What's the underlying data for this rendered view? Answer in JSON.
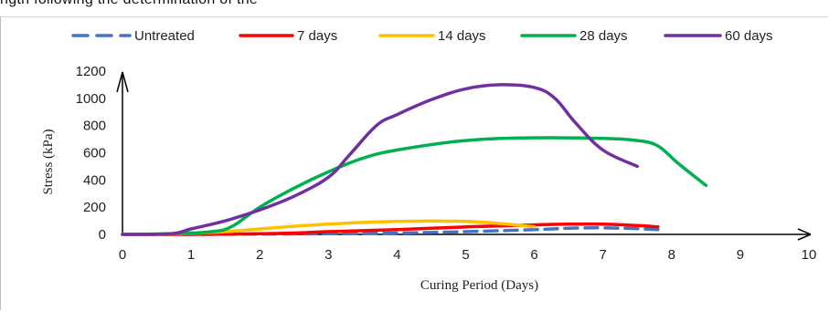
{
  "page": {
    "top_fragment": "ngth following the determination of the"
  },
  "chart_data": {
    "type": "line",
    "title": "",
    "xlabel": "Curing Period (Days)",
    "ylabel": "Stress (kPa)",
    "xlim": [
      0,
      10
    ],
    "ylim": [
      0,
      1200
    ],
    "x_ticks": [
      "0",
      "1",
      "2",
      "3",
      "4",
      "5",
      "6",
      "7",
      "8",
      "9",
      "10"
    ],
    "y_ticks": [
      "0",
      "200",
      "400",
      "600",
      "800",
      "1000",
      "1200"
    ],
    "grid": false,
    "legend_position": "top",
    "series": [
      {
        "name": "Untreated",
        "color": "#4472C4",
        "dashed": true,
        "x": [
          0,
          1,
          2,
          3,
          4,
          5,
          6,
          6.5,
          7,
          7.5,
          7.8
        ],
        "y": [
          0,
          0,
          2,
          5,
          10,
          20,
          35,
          45,
          48,
          42,
          35
        ]
      },
      {
        "name": "7 days",
        "color": "#FF0000",
        "dashed": false,
        "x": [
          0,
          1,
          1.5,
          2,
          2.5,
          3,
          4,
          5,
          6,
          6.5,
          7,
          7.5,
          7.8
        ],
        "y": [
          0,
          0,
          2,
          5,
          10,
          20,
          35,
          55,
          70,
          75,
          75,
          65,
          55
        ]
      },
      {
        "name": "14 days",
        "color": "#FFC000",
        "dashed": false,
        "x": [
          0,
          0.8,
          1.5,
          2,
          2.5,
          3,
          3.5,
          4,
          4.5,
          5,
          5.5,
          6
        ],
        "y": [
          0,
          5,
          20,
          40,
          60,
          75,
          88,
          95,
          98,
          95,
          80,
          55
        ]
      },
      {
        "name": "28 days",
        "color": "#00B050",
        "dashed": false,
        "x": [
          0,
          0.7,
          1.3,
          1.6,
          2,
          2.5,
          3,
          3.5,
          4,
          5,
          6,
          7,
          7.5,
          7.8,
          8.1,
          8.5
        ],
        "y": [
          0,
          5,
          20,
          60,
          200,
          340,
          460,
          560,
          620,
          690,
          710,
          705,
          690,
          650,
          520,
          360
        ]
      },
      {
        "name": "60 days",
        "color": "#7030A0",
        "dashed": false,
        "x": [
          0,
          0.7,
          1,
          1.5,
          2,
          2.5,
          3,
          3.3,
          3.7,
          4,
          4.5,
          5,
          5.5,
          6,
          6.3,
          6.6,
          7,
          7.5
        ],
        "y": [
          0,
          5,
          40,
          100,
          180,
          280,
          420,
          580,
          800,
          880,
          990,
          1070,
          1100,
          1080,
          1000,
          820,
          620,
          500
        ]
      }
    ]
  }
}
